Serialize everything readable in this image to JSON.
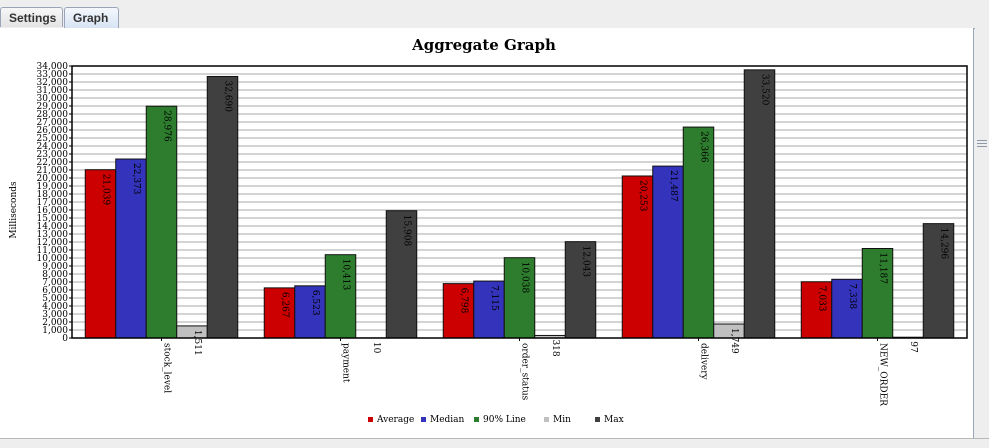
{
  "tabs": [
    {
      "label": "Settings",
      "active": false
    },
    {
      "label": "Graph",
      "active": true
    }
  ],
  "chart_data": {
    "type": "bar",
    "title": "Aggregate Graph",
    "ylabel": "Milliseconds",
    "xlabel": "",
    "ylim": [
      0,
      34000
    ],
    "ytick_step": 1000,
    "grid": true,
    "legend_position": "bottom",
    "categories": [
      "stock_level",
      "payment",
      "order_status",
      "delivery",
      "NEW_ORDER"
    ],
    "series": [
      {
        "name": "Average",
        "color": "#cc0000",
        "values": [
          21039,
          6267,
          6798,
          20253,
          7033
        ],
        "labels": [
          "21,039",
          "6,267",
          "6,798",
          "20,253",
          "7,033"
        ]
      },
      {
        "name": "Median",
        "color": "#3333bb",
        "values": [
          22373,
          6523,
          7115,
          21487,
          7338
        ],
        "labels": [
          "22,373",
          "6,523",
          "7,115",
          "21,487",
          "7,338"
        ]
      },
      {
        "name": "90% Line",
        "color": "#2e7d2e",
        "values": [
          28976,
          10413,
          10038,
          26366,
          11187
        ],
        "labels": [
          "28,976",
          "10,413",
          "10,038",
          "26,366",
          "11,187"
        ]
      },
      {
        "name": "Min",
        "color": "#c0c0c0",
        "values": [
          1511,
          10,
          318,
          1749,
          97
        ],
        "labels": [
          "1,511",
          "10",
          "318",
          "1,749",
          "97"
        ]
      },
      {
        "name": "Max",
        "color": "#404040",
        "values": [
          32690,
          15908,
          12043,
          33520,
          14296
        ],
        "labels": [
          "32,690",
          "15,908",
          "12,043",
          "33,520",
          "14,296"
        ]
      }
    ]
  }
}
